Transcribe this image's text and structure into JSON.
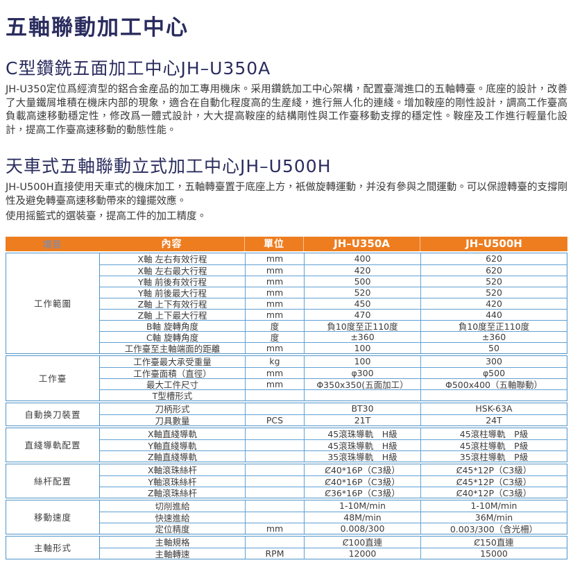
{
  "page_title": "五軸聯動加工中心",
  "sections": [
    {
      "heading": "C型鑽銑五面加工中心JH–U350A",
      "paragraphs": [
        "JH-U350定位爲經濟型的鋁合金産品的加工專用機床。采用鑽銑加工中心架構，配置臺灣進口的五軸轉臺。底座的設計，改善了大量鐵屑堆積在機床内部的現象，適合在自動化程度高的生産綫，進行無人化的連綫。增加鞍座的剛性設計，調高工作臺高負載高速移動穩定性，修改爲一體式設計，大大提高鞍座的結構剛性與工作臺移動支撑的穩定性。鞍座及工作進行輕量化設計，提高工作臺高速移動的動態性能。"
      ]
    },
    {
      "heading": "天車式五軸聯動立式加工中心JH–U500H",
      "paragraphs": [
        "JH-U500H直接使用天車式的機床加工，五軸轉臺置于底座上方，衹做旋轉運動，并没有參與之間運動。可以保證轉臺的支撐剛性及避免轉臺高速移動帶來的鐘擺效應。",
        "使用摇籃式的選裝臺，提高工件的加工精度。"
      ]
    }
  ],
  "table": {
    "headers": [
      "項目",
      "內容",
      "單位",
      "JH–U350A",
      "JH–U500H"
    ],
    "groups": [
      {
        "name": "工作範圍",
        "rows": [
          [
            "X軸 左右有效行程",
            "mm",
            "400",
            "620"
          ],
          [
            "X軸 左右最大行程",
            "mm",
            "420",
            "620"
          ],
          [
            "Y軸 前後有效行程",
            "mm",
            "500",
            "520"
          ],
          [
            "Y軸 前後最大行程",
            "mm",
            "520",
            "520"
          ],
          [
            "Z軸 上下有效行程",
            "mm",
            "450",
            "420"
          ],
          [
            "Z軸 上下最大行程",
            "mm",
            "470",
            "440"
          ],
          [
            "B軸 旋轉角度",
            "度",
            "負10度至正110度",
            "負10度至正110度"
          ],
          [
            "C軸 旋轉角度",
            "度",
            "±360",
            "±360"
          ],
          [
            "工作臺至主軸端面的距離",
            "mm",
            "100",
            "50"
          ]
        ]
      },
      {
        "name": "工作臺",
        "rows": [
          [
            "工作臺最大承受重量",
            "kg",
            "100",
            "300"
          ],
          [
            "工作臺面積（直徑）",
            "mm",
            "φ300",
            "φ500"
          ],
          [
            "最大工件尺寸",
            "mm",
            "Φ350x350(五面加工）",
            "Φ500x400（五軸聯動）"
          ],
          [
            "T型槽形式",
            "",
            "",
            ""
          ]
        ]
      },
      {
        "name": "自動换刀裝置",
        "rows": [
          [
            "刀柄形式",
            "",
            "BT30",
            "HSK-63A"
          ],
          [
            "刀具數量",
            "PCS",
            "21T",
            "24T"
          ]
        ]
      },
      {
        "name": "直綫導軌配置",
        "rows": [
          [
            "X軸直綫導軌",
            "",
            "45滾珠導軌　H級",
            "45滾柱導軌　P級"
          ],
          [
            "Y軸直綫導軌",
            "",
            "45滾珠導軌　H級",
            "45滾柱導軌　P級"
          ],
          [
            "Z軸直綫導軌",
            "",
            "35滾珠導軌　H級",
            "35滾柱導軌　P級"
          ]
        ]
      },
      {
        "name": "絲杆配置",
        "rows": [
          [
            "X軸滾珠絲杆",
            "",
            "Ȼ40*16P（C3級）",
            "Ȼ45*12P（C3級）"
          ],
          [
            "Y軸滾珠絲杆",
            "",
            "Ȼ40*16P（C3級）",
            "Ȼ45*12P（C3級）"
          ],
          [
            "Z軸滾珠絲杆",
            "",
            "Ȼ36*16P（C3級）",
            "Ȼ40*12P（C3級）"
          ]
        ]
      },
      {
        "name": "移動速度",
        "rows": [
          [
            "切削進給",
            "",
            "1-10M/min",
            "1-10M/min"
          ],
          [
            "快速進給",
            "",
            "48M/min",
            "36M/min"
          ],
          [
            "定位精度",
            "mm",
            "0.008/300",
            "0.003/300（含光柵）"
          ]
        ]
      },
      {
        "name": "主軸形式",
        "rows": [
          [
            "主軸規格",
            "",
            "Ȼ100直連",
            "Ȼ150直連"
          ],
          [
            "主軸轉速",
            "RPM",
            "12000",
            "15000"
          ]
        ]
      }
    ]
  },
  "colors": {
    "heading_navy": "#2a2c5e",
    "header_orange": "#ee7d1f",
    "table_border_blue": "#4f94c9",
    "item_header_gray": "#8f8a99",
    "body_text": "#3b3b3b"
  }
}
